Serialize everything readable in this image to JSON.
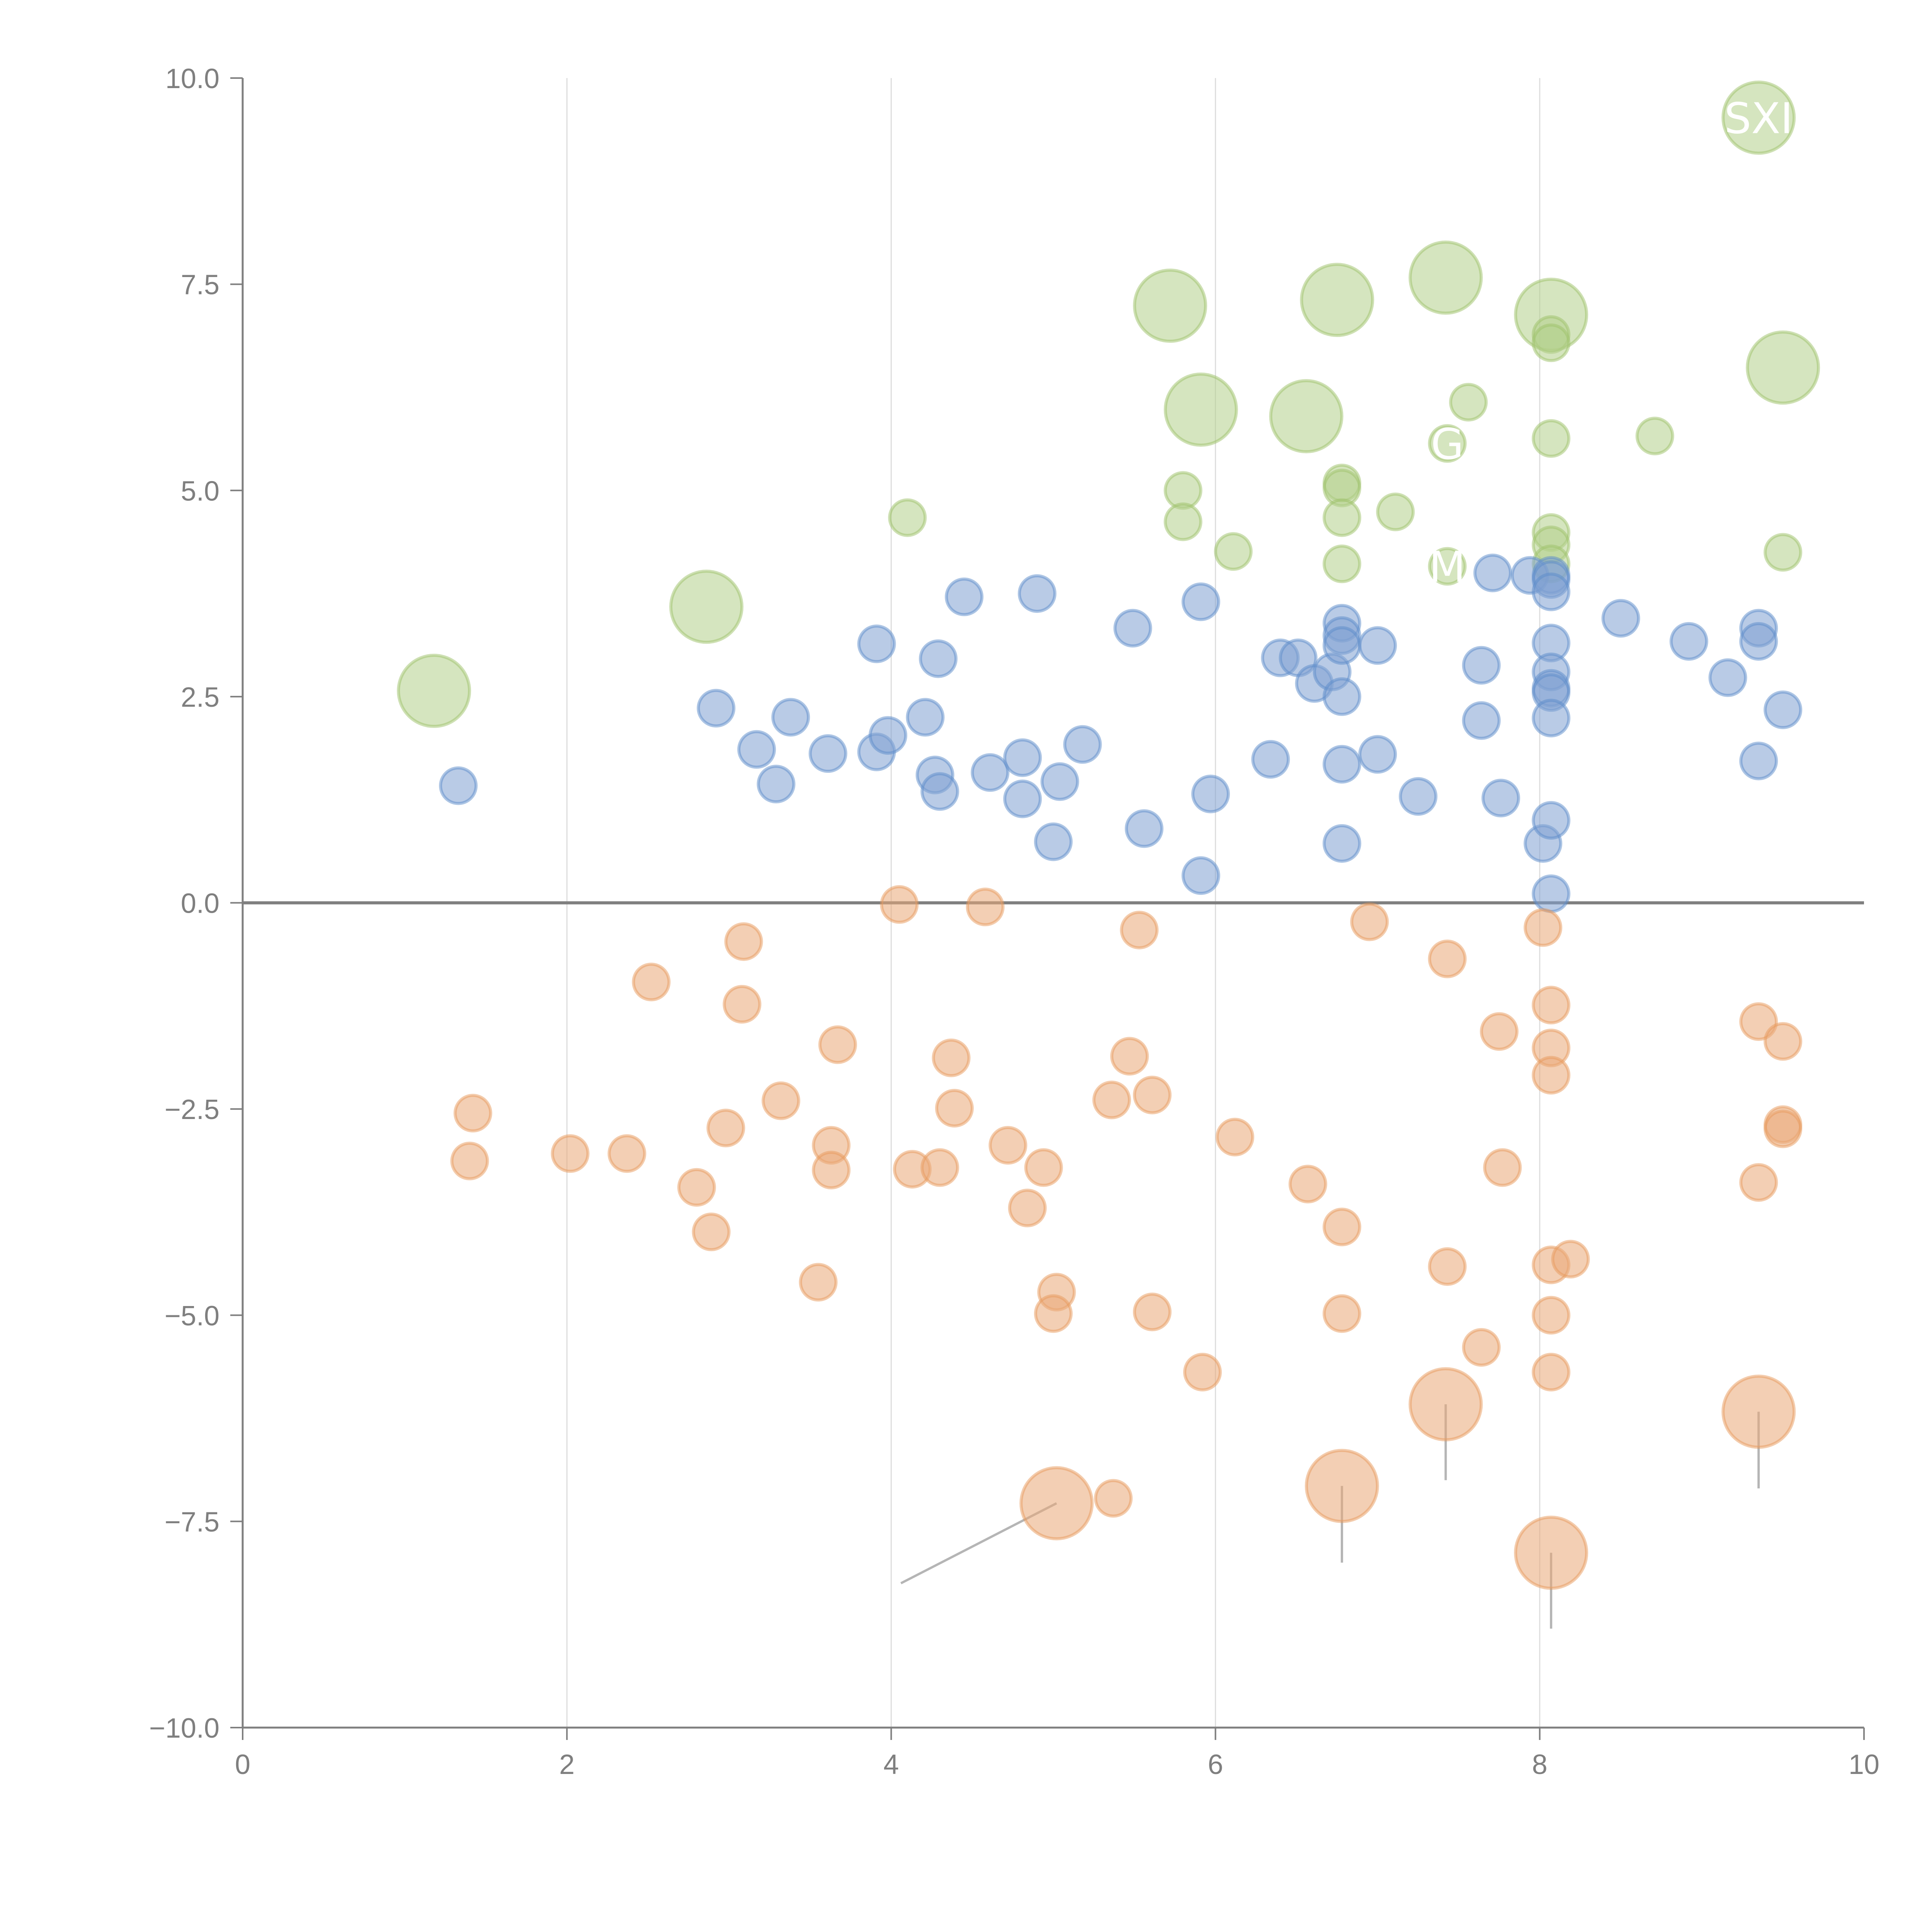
{
  "chart_data": {
    "type": "scatter",
    "title": "",
    "xlabel": "",
    "ylabel": "",
    "xlim": [
      0,
      10
    ],
    "ylim": [
      -10,
      10
    ],
    "x_ticks": [
      "0",
      "2",
      "4",
      "6",
      "8",
      "10"
    ],
    "y_ticks": [
      "−10.0",
      "−7.5",
      "−5.0",
      "−2.5",
      "0.0",
      "2.5",
      "5.0",
      "7.5",
      "10.0"
    ],
    "x_tick_values": [
      0,
      2,
      4,
      6,
      8,
      10
    ],
    "y_tick_values": [
      -10,
      -7.5,
      -5,
      -2.5,
      0,
      2.5,
      5,
      7.5,
      10
    ],
    "vertical_gridlines_at": [
      2,
      4,
      6,
      8
    ],
    "horizontal_reference_line_at": 0,
    "legend": "none",
    "series": [
      {
        "name": "green",
        "color": "#9dc16a",
        "points": [
          {
            "x": 1.18,
            "y": 2.57,
            "size": "large"
          },
          {
            "x": 2.86,
            "y": 3.59,
            "size": "large"
          },
          {
            "x": 4.1,
            "y": 4.67,
            "size": "small"
          },
          {
            "x": 5.72,
            "y": 7.24,
            "size": "large"
          },
          {
            "x": 5.91,
            "y": 5.98,
            "size": "large"
          },
          {
            "x": 5.8,
            "y": 5.0,
            "size": "small"
          },
          {
            "x": 5.8,
            "y": 4.62,
            "size": "small"
          },
          {
            "x": 6.11,
            "y": 4.26,
            "size": "small"
          },
          {
            "x": 6.56,
            "y": 5.9,
            "size": "large"
          },
          {
            "x": 6.75,
            "y": 7.31,
            "size": "large"
          },
          {
            "x": 6.78,
            "y": 5.09,
            "size": "small"
          },
          {
            "x": 6.78,
            "y": 5.03,
            "size": "small"
          },
          {
            "x": 6.78,
            "y": 4.67,
            "size": "small"
          },
          {
            "x": 6.78,
            "y": 4.11,
            "size": "small"
          },
          {
            "x": 7.11,
            "y": 4.74,
            "size": "small"
          },
          {
            "x": 7.42,
            "y": 7.58,
            "size": "large"
          },
          {
            "x": 7.43,
            "y": 5.57,
            "size": "small"
          },
          {
            "x": 7.43,
            "y": 4.08,
            "size": "small"
          },
          {
            "x": 7.56,
            "y": 6.07,
            "size": "small"
          },
          {
            "x": 8.07,
            "y": 7.13,
            "size": "large"
          },
          {
            "x": 8.07,
            "y": 6.89,
            "size": "small"
          },
          {
            "x": 8.07,
            "y": 6.79,
            "size": "small"
          },
          {
            "x": 8.07,
            "y": 5.63,
            "size": "small"
          },
          {
            "x": 8.07,
            "y": 4.49,
            "size": "small"
          },
          {
            "x": 8.07,
            "y": 4.34,
            "size": "small"
          },
          {
            "x": 8.07,
            "y": 4.11,
            "size": "small"
          },
          {
            "x": 8.71,
            "y": 5.66,
            "size": "small"
          },
          {
            "x": 9.35,
            "y": 9.52,
            "size": "large"
          },
          {
            "x": 9.5,
            "y": 6.49,
            "size": "large"
          },
          {
            "x": 9.5,
            "y": 4.25,
            "size": "small"
          }
        ]
      },
      {
        "name": "blue",
        "color": "#5b8bc9",
        "points": [
          {
            "x": 1.33,
            "y": 1.42
          },
          {
            "x": 2.92,
            "y": 2.36
          },
          {
            "x": 3.17,
            "y": 1.86
          },
          {
            "x": 3.29,
            "y": 1.44
          },
          {
            "x": 3.38,
            "y": 2.25
          },
          {
            "x": 3.61,
            "y": 1.81
          },
          {
            "x": 3.91,
            "y": 3.14
          },
          {
            "x": 3.91,
            "y": 1.83
          },
          {
            "x": 3.98,
            "y": 2.03
          },
          {
            "x": 4.21,
            "y": 2.25
          },
          {
            "x": 4.27,
            "y": 1.55
          },
          {
            "x": 4.29,
            "y": 2.96
          },
          {
            "x": 4.3,
            "y": 1.35
          },
          {
            "x": 4.45,
            "y": 3.71
          },
          {
            "x": 4.61,
            "y": 1.58
          },
          {
            "x": 4.81,
            "y": 1.76
          },
          {
            "x": 4.81,
            "y": 1.26
          },
          {
            "x": 4.9,
            "y": 3.75
          },
          {
            "x": 5.0,
            "y": 0.74
          },
          {
            "x": 5.04,
            "y": 1.47
          },
          {
            "x": 5.18,
            "y": 1.92
          },
          {
            "x": 5.49,
            "y": 3.33
          },
          {
            "x": 5.56,
            "y": 0.9
          },
          {
            "x": 5.91,
            "y": 3.65
          },
          {
            "x": 5.91,
            "y": 0.33
          },
          {
            "x": 5.97,
            "y": 1.32
          },
          {
            "x": 6.34,
            "y": 1.74
          },
          {
            "x": 6.4,
            "y": 2.97
          },
          {
            "x": 6.51,
            "y": 2.97
          },
          {
            "x": 6.61,
            "y": 2.66
          },
          {
            "x": 6.72,
            "y": 2.8
          },
          {
            "x": 6.78,
            "y": 3.39
          },
          {
            "x": 6.78,
            "y": 3.24
          },
          {
            "x": 6.78,
            "y": 3.12
          },
          {
            "x": 6.78,
            "y": 2.5
          },
          {
            "x": 6.78,
            "y": 1.68
          },
          {
            "x": 6.78,
            "y": 0.72
          },
          {
            "x": 7.0,
            "y": 3.12
          },
          {
            "x": 7.0,
            "y": 1.8
          },
          {
            "x": 7.25,
            "y": 1.29
          },
          {
            "x": 7.64,
            "y": 2.88
          },
          {
            "x": 7.64,
            "y": 2.21
          },
          {
            "x": 7.71,
            "y": 4.0
          },
          {
            "x": 7.76,
            "y": 1.27
          },
          {
            "x": 7.94,
            "y": 3.97
          },
          {
            "x": 8.02,
            "y": 0.72
          },
          {
            "x": 8.07,
            "y": 3.97
          },
          {
            "x": 8.07,
            "y": 3.92
          },
          {
            "x": 8.07,
            "y": 3.77
          },
          {
            "x": 8.07,
            "y": 3.15
          },
          {
            "x": 8.07,
            "y": 2.8
          },
          {
            "x": 8.07,
            "y": 2.6
          },
          {
            "x": 8.07,
            "y": 2.55
          },
          {
            "x": 8.07,
            "y": 2.24
          },
          {
            "x": 8.07,
            "y": 1.0
          },
          {
            "x": 8.07,
            "y": 0.11
          },
          {
            "x": 8.5,
            "y": 3.45
          },
          {
            "x": 8.92,
            "y": 3.17
          },
          {
            "x": 9.16,
            "y": 2.73
          },
          {
            "x": 9.35,
            "y": 3.33
          },
          {
            "x": 9.35,
            "y": 3.17
          },
          {
            "x": 9.35,
            "y": 1.72
          },
          {
            "x": 9.5,
            "y": 2.34
          }
        ]
      },
      {
        "name": "orange",
        "color": "#e89a5c",
        "points": [
          {
            "x": 1.4,
            "y": -3.13,
            "size": "small"
          },
          {
            "x": 1.42,
            "y": -2.55,
            "size": "small"
          },
          {
            "x": 2.02,
            "y": -3.04,
            "size": "small"
          },
          {
            "x": 2.37,
            "y": -3.04,
            "size": "small"
          },
          {
            "x": 2.52,
            "y": -0.96,
            "size": "small"
          },
          {
            "x": 2.8,
            "y": -3.45,
            "size": "small"
          },
          {
            "x": 2.89,
            "y": -3.99,
            "size": "small"
          },
          {
            "x": 2.98,
            "y": -2.73,
            "size": "small"
          },
          {
            "x": 3.08,
            "y": -1.23,
            "size": "small"
          },
          {
            "x": 3.09,
            "y": -0.47,
            "size": "small"
          },
          {
            "x": 3.32,
            "y": -2.4,
            "size": "small"
          },
          {
            "x": 3.55,
            "y": -4.6,
            "size": "small"
          },
          {
            "x": 3.63,
            "y": -2.94,
            "size": "small"
          },
          {
            "x": 3.63,
            "y": -3.24,
            "size": "small"
          },
          {
            "x": 3.67,
            "y": -1.72,
            "size": "small"
          },
          {
            "x": 4.05,
            "y": -0.02,
            "size": "small"
          },
          {
            "x": 4.13,
            "y": -3.23,
            "size": "small"
          },
          {
            "x": 4.3,
            "y": -3.21,
            "size": "small"
          },
          {
            "x": 4.37,
            "y": -1.88,
            "size": "small"
          },
          {
            "x": 4.39,
            "y": -2.49,
            "size": "small"
          },
          {
            "x": 4.58,
            "y": -0.05,
            "size": "small"
          },
          {
            "x": 4.72,
            "y": -2.94,
            "size": "small"
          },
          {
            "x": 4.84,
            "y": -3.7,
            "size": "small"
          },
          {
            "x": 4.94,
            "y": -3.21,
            "size": "small"
          },
          {
            "x": 5.02,
            "y": -4.72,
            "size": "small"
          },
          {
            "x": 5.0,
            "y": -4.98,
            "size": "small"
          },
          {
            "x": 5.02,
            "y": -7.28,
            "size": "large"
          },
          {
            "x": 5.37,
            "y": -7.22,
            "size": "small"
          },
          {
            "x": 5.36,
            "y": -2.39,
            "size": "small"
          },
          {
            "x": 5.47,
            "y": -1.86,
            "size": "small"
          },
          {
            "x": 5.53,
            "y": -0.33,
            "size": "small"
          },
          {
            "x": 5.61,
            "y": -2.33,
            "size": "small"
          },
          {
            "x": 5.61,
            "y": -4.96,
            "size": "small"
          },
          {
            "x": 5.92,
            "y": -5.69,
            "size": "small"
          },
          {
            "x": 6.12,
            "y": -2.84,
            "size": "small"
          },
          {
            "x": 6.57,
            "y": -3.41,
            "size": "small"
          },
          {
            "x": 6.78,
            "y": -3.93,
            "size": "small"
          },
          {
            "x": 6.78,
            "y": -4.98,
            "size": "small"
          },
          {
            "x": 6.78,
            "y": -7.07,
            "size": "large"
          },
          {
            "x": 6.95,
            "y": -0.23,
            "size": "small"
          },
          {
            "x": 7.43,
            "y": -0.68,
            "size": "small"
          },
          {
            "x": 7.43,
            "y": -4.41,
            "size": "small"
          },
          {
            "x": 7.42,
            "y": -6.08,
            "size": "large"
          },
          {
            "x": 7.64,
            "y": -5.39,
            "size": "small"
          },
          {
            "x": 7.75,
            "y": -1.56,
            "size": "small"
          },
          {
            "x": 7.77,
            "y": -3.21,
            "size": "small"
          },
          {
            "x": 8.02,
            "y": -0.3,
            "size": "small"
          },
          {
            "x": 8.07,
            "y": -1.24,
            "size": "small"
          },
          {
            "x": 8.07,
            "y": -1.76,
            "size": "small"
          },
          {
            "x": 8.07,
            "y": -2.09,
            "size": "small"
          },
          {
            "x": 8.07,
            "y": -4.39,
            "size": "small"
          },
          {
            "x": 8.07,
            "y": -5.0,
            "size": "small"
          },
          {
            "x": 8.07,
            "y": -5.69,
            "size": "small"
          },
          {
            "x": 8.07,
            "y": -7.88,
            "size": "large"
          },
          {
            "x": 8.19,
            "y": -4.32,
            "size": "small"
          },
          {
            "x": 9.35,
            "y": -1.44,
            "size": "small"
          },
          {
            "x": 9.35,
            "y": -3.39,
            "size": "small"
          },
          {
            "x": 9.35,
            "y": -6.17,
            "size": "large"
          },
          {
            "x": 9.5,
            "y": -1.68,
            "size": "small"
          },
          {
            "x": 9.5,
            "y": -2.69,
            "size": "small"
          },
          {
            "x": 9.5,
            "y": -2.74,
            "size": "small"
          }
        ]
      }
    ],
    "annotations": [
      {
        "text": "SXI",
        "x": 9.35,
        "y": 9.52,
        "color": "#ffffff"
      },
      {
        "text": "G",
        "x": 7.43,
        "y": 5.57,
        "color": "#ffffff"
      },
      {
        "text": "M",
        "x": 7.43,
        "y": 4.08,
        "color": "#ffffff"
      }
    ],
    "leader_lines": [
      {
        "from": [
          5.02,
          -7.28
        ],
        "to": [
          4.06,
          -8.25
        ]
      },
      {
        "from": [
          6.78,
          -7.07
        ],
        "to": [
          6.78,
          -8.0
        ]
      },
      {
        "from": [
          7.42,
          -6.08
        ],
        "to": [
          7.42,
          -7.0
        ]
      },
      {
        "from": [
          8.07,
          -7.88
        ],
        "to": [
          8.07,
          -8.8
        ]
      },
      {
        "from": [
          9.35,
          -6.17
        ],
        "to": [
          9.35,
          -7.1
        ]
      }
    ]
  }
}
